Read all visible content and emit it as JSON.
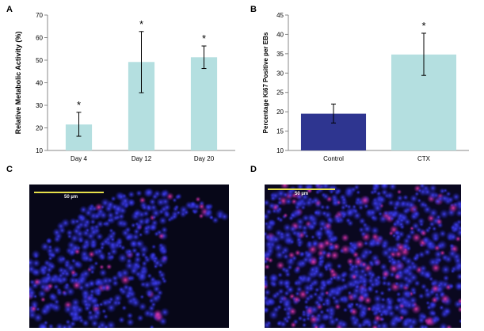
{
  "panel_labels": {
    "a": "A",
    "b": "B",
    "c": "C",
    "d": "D"
  },
  "chart_data": [
    {
      "type": "bar",
      "title": "",
      "categories": [
        "Day 4",
        "Day 12",
        "Day 20"
      ],
      "values": [
        21.5,
        49.2,
        51.3
      ],
      "error_low": [
        16.3,
        35.6,
        46.3
      ],
      "error_high": [
        26.9,
        62.7,
        56.3
      ],
      "significance": [
        "*",
        "*",
        "*"
      ],
      "xlabel": "",
      "ylabel": "Relative Metabolic Activity (%)",
      "ylim": [
        10,
        70
      ],
      "yticks": [
        "10",
        "20",
        "30",
        "40",
        "50",
        "60",
        "70"
      ],
      "bar_color": "#b4dfe0",
      "grid": false
    },
    {
      "type": "bar",
      "title": "",
      "categories": [
        "Control",
        "CTX"
      ],
      "values": [
        19.5,
        34.8
      ],
      "error_low": [
        17.1,
        29.4
      ],
      "error_high": [
        22.0,
        40.3
      ],
      "significance": [
        "",
        "*"
      ],
      "xlabel": "",
      "ylabel": "Percentage Ki67 Positive per EBs",
      "ylim": [
        10,
        45
      ],
      "yticks": [
        "10",
        "15",
        "20",
        "25",
        "30",
        "35",
        "40",
        "45"
      ],
      "bar_colors": [
        "#2e3590",
        "#b4dfe0"
      ],
      "grid": false
    }
  ],
  "micrographs": {
    "c": {
      "scale_label": "50 µm",
      "background": "#070718"
    },
    "d": {
      "scale_label": "50 µm",
      "background": "#0a0820"
    }
  }
}
